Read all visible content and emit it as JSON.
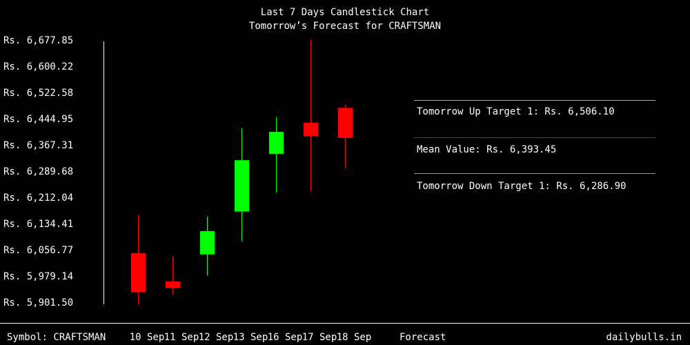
{
  "chart_data": {
    "type": "candlestick",
    "title": "Last 7 Days Candlestick Chart",
    "subtitle": "Tomorrow’s Forecast for CRAFTSMAN",
    "ylim": [
      5901.5,
      6677.85
    ],
    "y_ticks": [
      "Rs. 6,677.85",
      "Rs. 6,600.22",
      "Rs. 6,522.58",
      "Rs. 6,444.95",
      "Rs. 6,367.31",
      "Rs. 6,289.68",
      "Rs. 6,212.04",
      "Rs. 6,134.41",
      "Rs. 6,056.77",
      "Rs. 5,979.14",
      "Rs. 5,901.50"
    ],
    "y_tick_values": [
      6677.85,
      6600.22,
      6522.58,
      6444.95,
      6367.31,
      6289.68,
      6212.04,
      6134.41,
      6056.77,
      5979.14,
      5901.5
    ],
    "categories": [
      "10 Sep",
      "11 Sep",
      "12 Sep",
      "13 Sep",
      "16 Sep",
      "17 Sep",
      "18 Sep"
    ],
    "candles": [
      {
        "date": "10 Sep",
        "open": 6047,
        "high": 6159,
        "low": 5895,
        "close": 5931
      },
      {
        "date": "11 Sep",
        "open": 5963,
        "high": 6039,
        "low": 5924,
        "close": 5944
      },
      {
        "date": "12 Sep",
        "open": 6043,
        "high": 6155,
        "low": 5981,
        "close": 6112
      },
      {
        "date": "13 Sep",
        "open": 6170,
        "high": 6418,
        "low": 6082,
        "close": 6322
      },
      {
        "date": "16 Sep",
        "open": 6341,
        "high": 6450,
        "low": 6226,
        "close": 6406
      },
      {
        "date": "17 Sep",
        "open": 6433,
        "high": 6678,
        "low": 6231,
        "close": 6393
      },
      {
        "date": "18 Sep",
        "open": 6477,
        "high": 6487,
        "low": 6298,
        "close": 6388
      }
    ],
    "up_color": "#00ff00",
    "down_color": "#ff0000",
    "forecast": {
      "column_label": "Forecast",
      "up_target": {
        "label": "Tomorrow Up Target 1: Rs. 6,506.10",
        "value": 6506.1,
        "color": "#ffa500"
      },
      "mean": {
        "label": "Mean Value: Rs. 6,393.45",
        "value": 6393.45,
        "color": "#ff0000"
      },
      "down_target": {
        "label": "Tomorrow Down Target 1: Rs. 6,286.90",
        "value": 6286.9,
        "color": "#00ff00"
      }
    }
  },
  "footer": {
    "symbol": "Symbol: CRAFTSMAN",
    "brand": "dailybulls.in"
  }
}
